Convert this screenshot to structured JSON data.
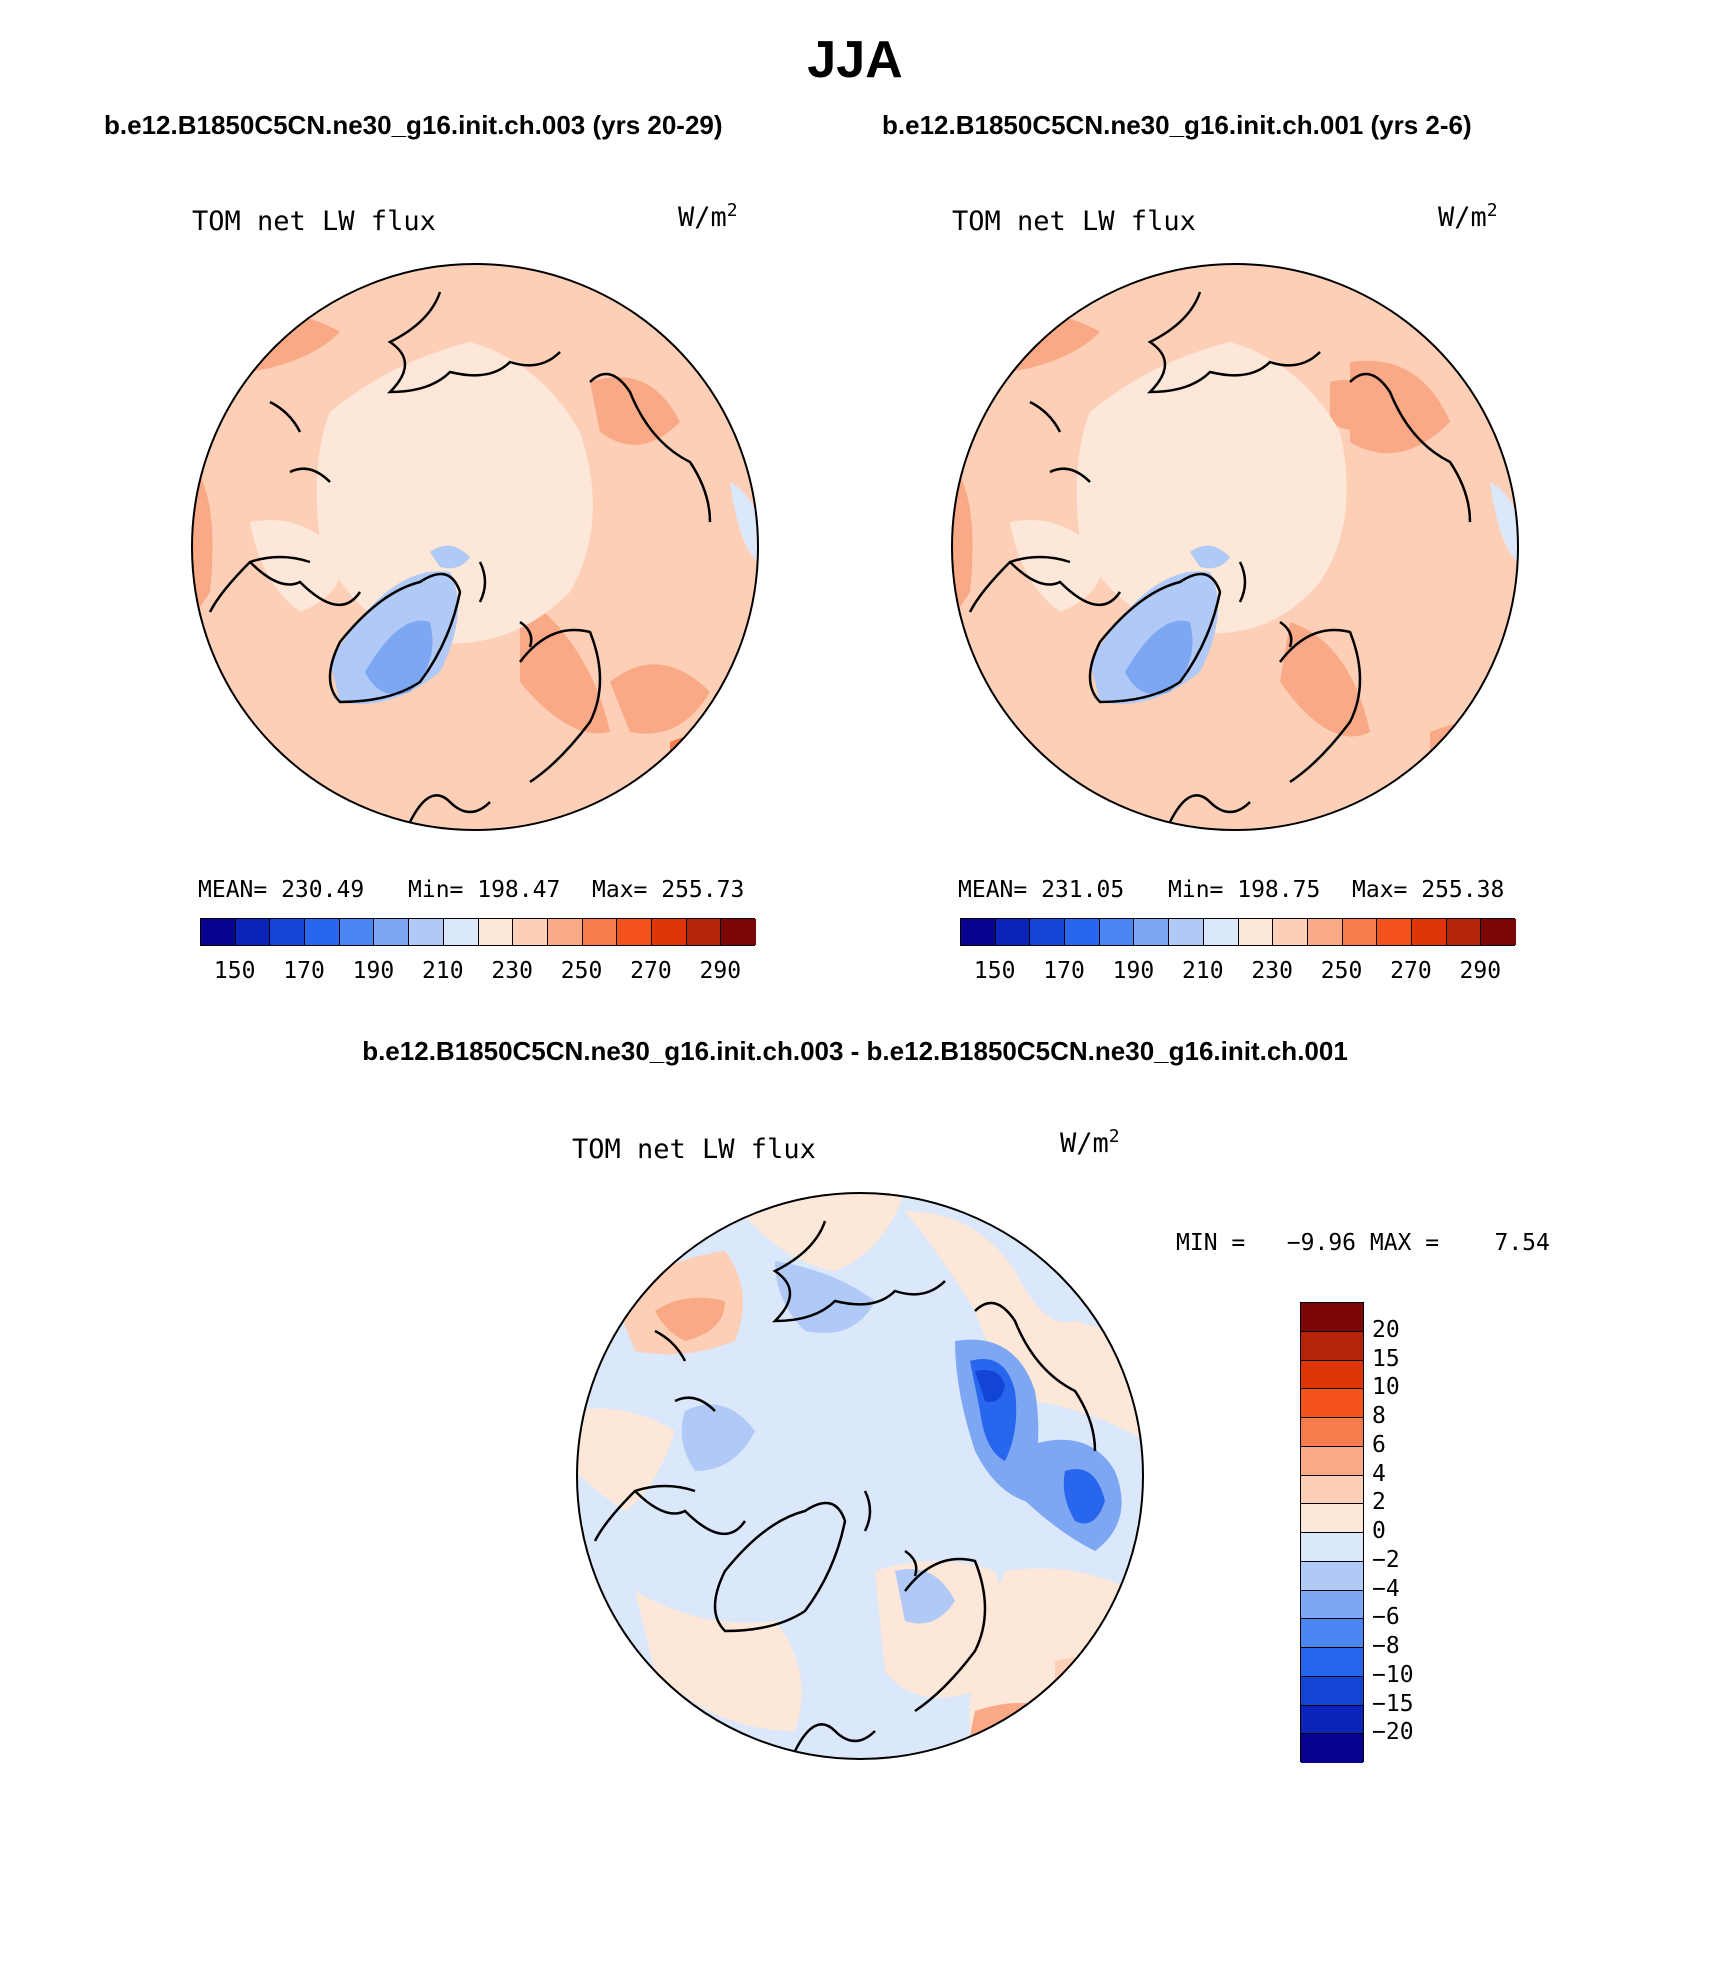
{
  "title": "JJA",
  "panels": [
    {
      "case_title": "b.e12.B1850C5CN.ne30_g16.init.ch.003 (yrs 20-29)",
      "variable": "TOM net LW flux",
      "unit_base": "W/m",
      "unit_exp": "2",
      "stats": {
        "mean": "MEAN= 230.49",
        "min": "Min= 198.47",
        "max": "Max= 255.73"
      }
    },
    {
      "case_title": "b.e12.B1850C5CN.ne30_g16.init.ch.001 (yrs 2-6)",
      "variable": "TOM net LW flux",
      "unit_base": "W/m",
      "unit_exp": "2",
      "stats": {
        "mean": "MEAN= 231.05",
        "min": "Min= 198.75",
        "max": "Max= 255.38"
      }
    }
  ],
  "diff_panel": {
    "title": "b.e12.B1850C5CN.ne30_g16.init.ch.003 - b.e12.B1850C5CN.ne30_g16.init.ch.001",
    "variable": "TOM net LW flux",
    "unit_base": "W/m",
    "unit_exp": "2",
    "minmax": "MIN =   −9.96 MAX =    7.54"
  },
  "abs_colorbar": {
    "colors": [
      "#08008f",
      "#0a23b8",
      "#1245d6",
      "#2866ee",
      "#4c86f2",
      "#7ea7f3",
      "#b0c9f6",
      "#dbe8fb",
      "#fde7d8",
      "#fccfb6",
      "#f9a985",
      "#f77c4e",
      "#f3521d",
      "#de3506",
      "#b6240a",
      "#7c0606"
    ],
    "tick_labels": [
      "150",
      "170",
      "190",
      "210",
      "230",
      "250",
      "270",
      "290"
    ]
  },
  "diff_colorbar": {
    "colors": [
      "#7c0606",
      "#b6240a",
      "#de3506",
      "#f3521d",
      "#f77c4e",
      "#f9a985",
      "#fccfb6",
      "#fde7d8",
      "#dbe8fb",
      "#b0c9f6",
      "#7ea7f3",
      "#4c86f2",
      "#2866ee",
      "#1245d6",
      "#0a23b8",
      "#08008f"
    ],
    "tick_labels": [
      "20",
      "15",
      "10",
      "8",
      "6",
      "4",
      "2",
      "0",
      "−2",
      "−4",
      "−6",
      "−8",
      "−10",
      "−15",
      "−20"
    ]
  }
}
